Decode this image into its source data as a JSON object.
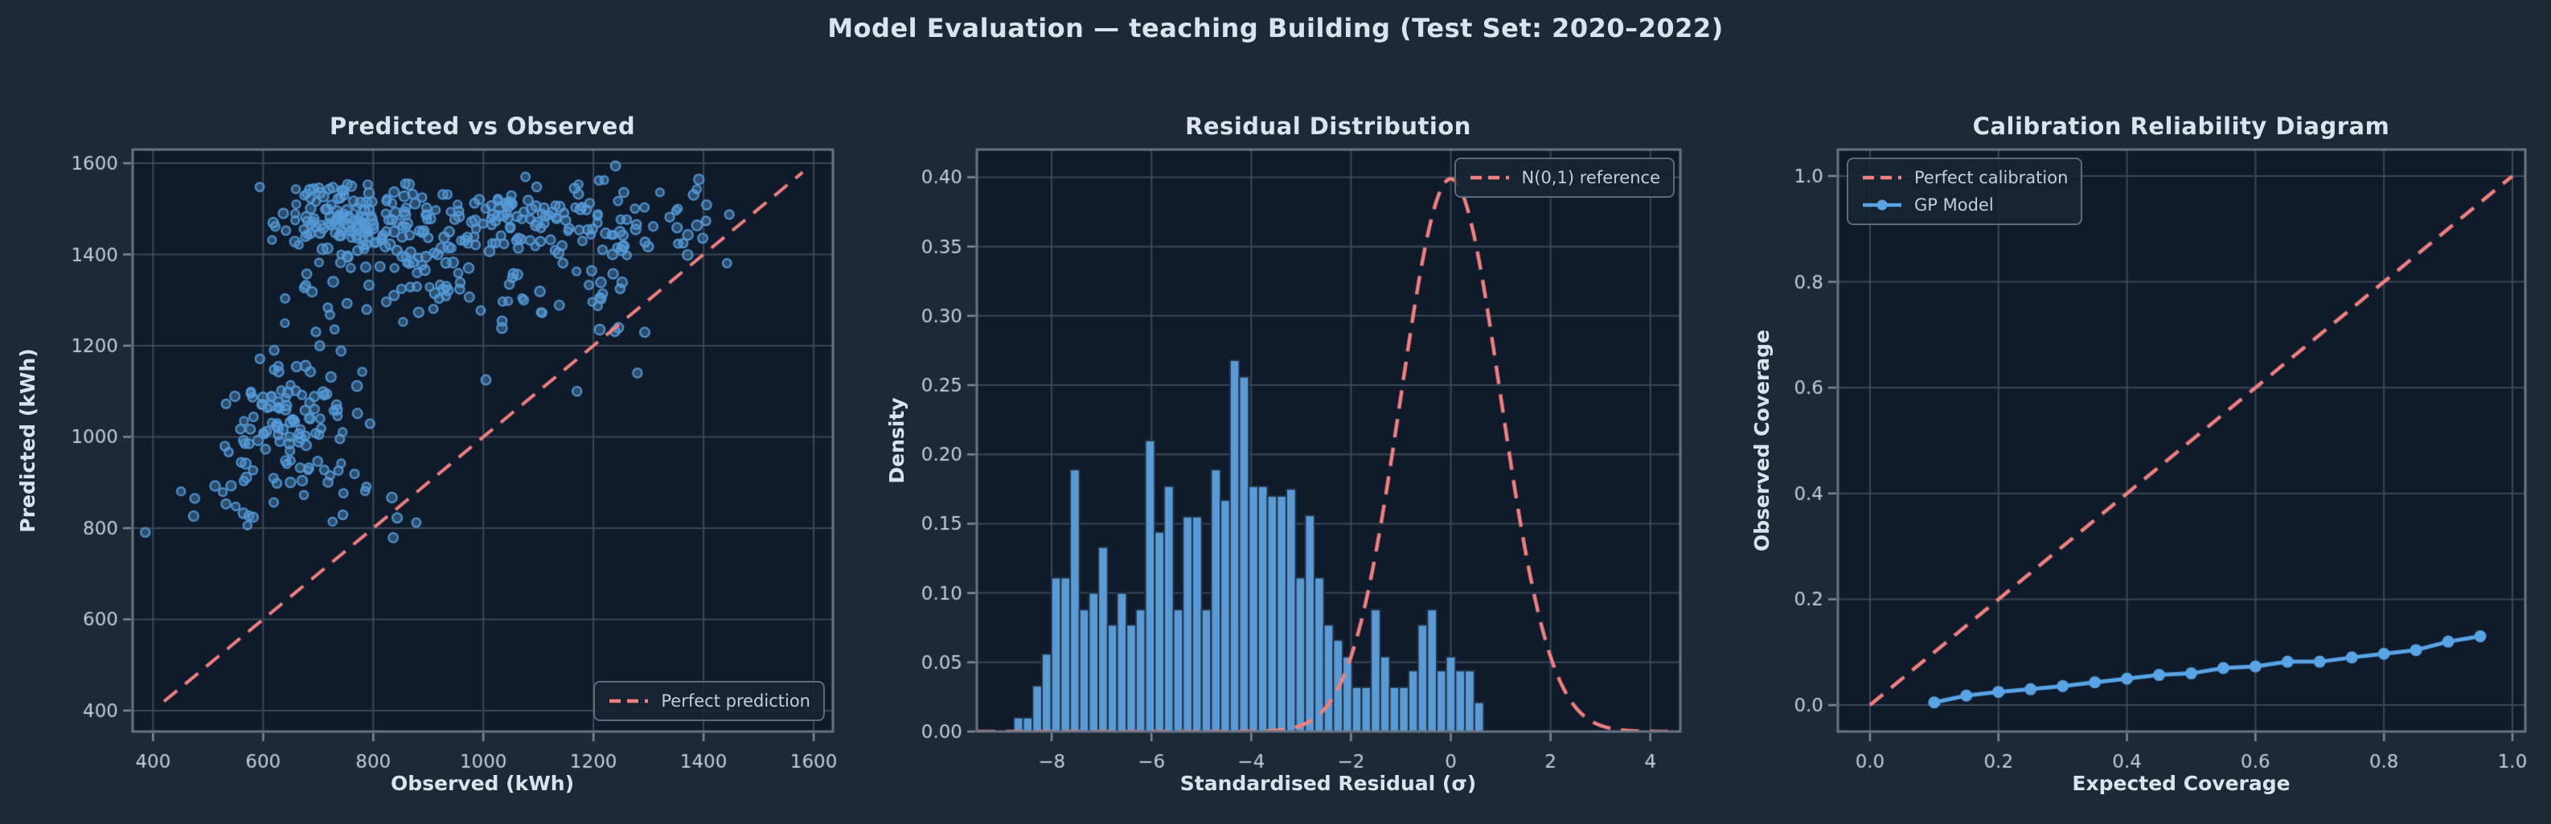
{
  "figure": {
    "title": "Model Evaluation — teaching Building (Test Set: 2020–2022)",
    "colors": {
      "background": "#1e2936",
      "axes_background": "#0f1a2b",
      "grid": "#3c4857",
      "spine": "#6a7585",
      "tick": "#7f8b9b",
      "tick_label": "#c3cedb",
      "text": "#dbe3ee",
      "red": "#f08080",
      "blue": "#58a4e4",
      "scatter_fill": "rgba(95,161,217,0.38)",
      "scatter_edge": "rgba(82,153,214,0.95)",
      "hist_fill": "#5b9bd5",
      "hist_edge": "#1f3042"
    }
  },
  "chart_data": [
    {
      "id": "pred_vs_obs",
      "type": "scatter",
      "title": "Predicted vs Observed",
      "xlabel": "Observed (kWh)",
      "ylabel": "Predicted (kWh)",
      "xlim": [
        363,
        1635
      ],
      "ylim": [
        354,
        1630
      ],
      "xticks": [
        400,
        600,
        800,
        1000,
        1200,
        1400,
        1600
      ],
      "xtick_labels": [
        "400",
        "600",
        "800",
        "1000",
        "1200",
        "1400",
        "1600"
      ],
      "yticks": [
        400,
        600,
        800,
        1000,
        1200,
        1400,
        1600
      ],
      "ytick_labels": [
        "400",
        "600",
        "800",
        "1000",
        "1200",
        "1400",
        "1600"
      ],
      "grid": true,
      "legend_position": "lower right",
      "scatter": {
        "seed": 11,
        "point_radius": [
          4.9,
          6.3
        ],
        "clip": {
          "x": [
            375,
            1460
          ],
          "y": [
            760,
            1600
          ]
        },
        "clusters": [
          {
            "n": 120,
            "x": 740,
            "y": 1480,
            "sx": 70,
            "sy": 45
          },
          {
            "n": 80,
            "x": 900,
            "y": 1445,
            "sx": 80,
            "sy": 55
          },
          {
            "n": 90,
            "x": 1090,
            "y": 1480,
            "sx": 80,
            "sy": 40
          },
          {
            "n": 60,
            "x": 880,
            "y": 1310,
            "sx": 160,
            "sy": 55
          },
          {
            "n": 25,
            "x": 1240,
            "y": 1370,
            "sx": 35,
            "sy": 95
          },
          {
            "n": 20,
            "x": 1390,
            "y": 1490,
            "sx": 45,
            "sy": 55
          },
          {
            "n": 100,
            "x": 650,
            "y": 1035,
            "sx": 60,
            "sy": 62
          },
          {
            "n": 25,
            "x": 530,
            "y": 890,
            "sx": 85,
            "sy": 48
          },
          {
            "n": 10,
            "x": 790,
            "y": 840,
            "sx": 50,
            "sy": 50
          }
        ],
        "outliers": [
          [
            1280,
            1140
          ],
          [
            1170,
            1100
          ],
          [
            620,
            1190
          ]
        ]
      },
      "reference_line": {
        "label": "Perfect prediction",
        "x": [
          420,
          1580
        ],
        "y": [
          420,
          1580
        ],
        "style": "dashed",
        "color_key": "red"
      }
    },
    {
      "id": "residual_distribution",
      "type": "histogram",
      "title": "Residual Distribution",
      "xlabel": "Standardised Residual (σ)",
      "ylabel": "Density",
      "xlim": [
        -9.5,
        4.6
      ],
      "ylim": [
        0,
        0.42
      ],
      "xticks": [
        -8,
        -6,
        -4,
        -2,
        0,
        2,
        4
      ],
      "xtick_labels": [
        "−8",
        "−6",
        "−4",
        "−2",
        "0",
        "2",
        "4"
      ],
      "yticks": [
        0,
        0.05,
        0.1,
        0.15,
        0.2,
        0.25,
        0.3,
        0.35,
        0.4
      ],
      "ytick_labels": [
        "0.00",
        "0.05",
        "0.10",
        "0.15",
        "0.20",
        "0.25",
        "0.30",
        "0.35",
        "0.40"
      ],
      "grid": true,
      "legend_position": "upper right",
      "bins": {
        "start": -8.76,
        "width": 0.1884,
        "densities": [
          0.01,
          0.01,
          0.033,
          0.056,
          0.111,
          0.111,
          0.189,
          0.088,
          0.1,
          0.133,
          0.077,
          0.1,
          0.077,
          0.088,
          0.21,
          0.144,
          0.177,
          0.088,
          0.155,
          0.155,
          0.088,
          0.189,
          0.167,
          0.268,
          0.256,
          0.177,
          0.177,
          0.17,
          0.17,
          0.175,
          0.111,
          0.156,
          0.111,
          0.077,
          0.066,
          0.054,
          0.032,
          0.032,
          0.088,
          0.054,
          0.032,
          0.032,
          0.044,
          0.077,
          0.088,
          0.044,
          0.054,
          0.044,
          0.044,
          0.021
        ]
      },
      "reference_curve": {
        "label": "N(0,1) reference",
        "distribution": "normal",
        "mu": 0,
        "sigma": 1,
        "style": "dashed",
        "color_key": "red"
      }
    },
    {
      "id": "calibration_reliability",
      "type": "line",
      "title": "Calibration Reliability Diagram",
      "xlabel": "Expected Coverage",
      "ylabel": "Observed Coverage",
      "xlim": [
        -0.05,
        1.02
      ],
      "ylim": [
        -0.05,
        1.05
      ],
      "xticks": [
        0,
        0.2,
        0.4,
        0.6,
        0.8,
        1.0
      ],
      "xtick_labels": [
        "0.0",
        "0.2",
        "0.4",
        "0.6",
        "0.8",
        "1.0"
      ],
      "yticks": [
        0,
        0.2,
        0.4,
        0.6,
        0.8,
        1.0
      ],
      "ytick_labels": [
        "0.0",
        "0.2",
        "0.4",
        "0.6",
        "0.8",
        "1.0"
      ],
      "grid": true,
      "legend_position": "upper left",
      "series": [
        {
          "name": "Perfect calibration",
          "style": "dashed",
          "color_key": "red",
          "x": [
            0,
            1
          ],
          "y": [
            0,
            1
          ]
        },
        {
          "name": "GP Model",
          "style": "solid",
          "markers": true,
          "color_key": "blue",
          "x": [
            0.1,
            0.15,
            0.2,
            0.25,
            0.3,
            0.35,
            0.4,
            0.45,
            0.5,
            0.55,
            0.6,
            0.65,
            0.7,
            0.75,
            0.8,
            0.85,
            0.9,
            0.95
          ],
          "y": [
            0.005,
            0.018,
            0.025,
            0.03,
            0.036,
            0.043,
            0.05,
            0.057,
            0.06,
            0.07,
            0.073,
            0.082,
            0.082,
            0.09,
            0.097,
            0.104,
            0.12,
            0.13
          ]
        }
      ]
    }
  ]
}
